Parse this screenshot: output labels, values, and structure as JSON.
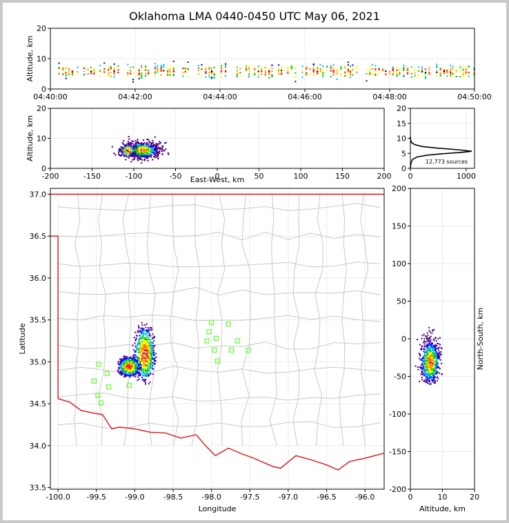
{
  "chart_data": [
    {
      "id": "time_height",
      "type": "heatmap",
      "title": "Oklahoma LMA 0440-0450 UTC May 06, 2021",
      "xlabel": "",
      "ylabel": "Altitude, km",
      "xlim": [
        "04:40:00",
        "04:50:00"
      ],
      "ylim": [
        0,
        20
      ],
      "x_ticks": [
        "04:40:00",
        "04:42:00",
        "04:44:00",
        "04:46:00",
        "04:48:00",
        "04:50:00"
      ],
      "y_ticks": [
        0,
        10,
        20
      ],
      "altitude_band_km": [
        3,
        9
      ],
      "altitude_core_km": 5.8
    },
    {
      "id": "ew_height",
      "type": "heatmap",
      "xlabel": "East-West, km",
      "ylabel": "Altitude, km",
      "xlim": [
        -200,
        200
      ],
      "ylim": [
        0,
        20
      ],
      "x_ticks": [
        -200,
        -150,
        -100,
        -50,
        0,
        50,
        100,
        150,
        200
      ],
      "y_ticks": [
        0,
        10,
        20
      ],
      "cluster_x_km": [
        -130,
        -55
      ],
      "cluster_core_x_km": -90,
      "altitude_core_km": 6
    },
    {
      "id": "altitude_histogram",
      "type": "line",
      "xlabel": "",
      "ylabel": "",
      "xlim": [
        0,
        1150
      ],
      "ylim": [
        0,
        20
      ],
      "x_ticks": [
        0,
        1000
      ],
      "y_ticks": [
        0,
        5,
        10,
        15,
        20
      ],
      "annotation": "12,773 sources",
      "x": [
        0,
        5,
        15,
        40,
        120,
        300,
        600,
        900,
        1100,
        850,
        450,
        200,
        80,
        25,
        8,
        2,
        0
      ],
      "y": [
        0,
        1,
        2,
        3,
        3.8,
        4.4,
        4.9,
        5.3,
        5.7,
        6.2,
        6.8,
        7.3,
        7.9,
        8.5,
        9.2,
        9.8,
        10.5
      ]
    },
    {
      "id": "plan_view",
      "type": "scatter",
      "xlabel": "Longitude",
      "ylabel": "Latitude",
      "xlim": [
        -100.1,
        -95.75
      ],
      "ylim": [
        33.48,
        37.07
      ],
      "x_ticks": [
        -100.0,
        -99.5,
        -99.0,
        -98.5,
        -98.0,
        -97.5,
        -97.0,
        -96.5,
        -96.0
      ],
      "y_ticks": [
        33.5,
        34.0,
        34.5,
        35.0,
        35.5,
        36.0,
        36.5,
        37.0
      ],
      "stations": [
        [
          -99.47,
          34.97
        ],
        [
          -99.36,
          34.86
        ],
        [
          -99.53,
          34.77
        ],
        [
          -99.34,
          34.7
        ],
        [
          -99.48,
          34.6
        ],
        [
          -99.44,
          34.51
        ],
        [
          -99.07,
          34.72
        ],
        [
          -98.0,
          35.47
        ],
        [
          -97.78,
          35.45
        ],
        [
          -98.03,
          35.36
        ],
        [
          -98.06,
          35.25
        ],
        [
          -97.94,
          35.28
        ],
        [
          -97.66,
          35.25
        ],
        [
          -97.96,
          35.14
        ],
        [
          -97.74,
          35.14
        ],
        [
          -97.52,
          35.14
        ],
        [
          -97.92,
          35.01
        ]
      ],
      "storm_cells": [
        {
          "lon": -98.88,
          "lat": 35.1,
          "dlon": 0.07,
          "dlat": 0.17
        },
        {
          "lon": -99.08,
          "lat": 34.95,
          "dlon": 0.07,
          "dlat": 0.06
        }
      ]
    },
    {
      "id": "ns_height",
      "type": "heatmap",
      "xlabel": "Altitude, km",
      "ylabel": "North-South, km",
      "xlim": [
        0,
        20
      ],
      "ylim": [
        -200,
        200
      ],
      "x_ticks": [
        0,
        10,
        20
      ],
      "y_ticks": [
        -200,
        -150,
        -100,
        -50,
        0,
        50,
        100,
        150,
        200
      ],
      "cluster_y_km": [
        -60,
        30
      ],
      "cluster_core_y_km": -30,
      "altitude_core_km": 6
    }
  ],
  "colors": {
    "state_border": "#e01010",
    "county_lines": "#c8c8c8",
    "station": "#66ff33",
    "density_scale": [
      "#4b0082",
      "#0000ff",
      "#00bfff",
      "#00c800",
      "#ffff00",
      "#ff8c00",
      "#ff0000",
      "#ffffff",
      "#000000"
    ]
  }
}
